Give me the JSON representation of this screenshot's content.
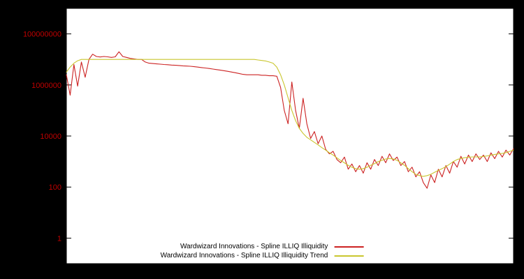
{
  "figure": {
    "background_color": "#000000",
    "plot_background_color": "#ffffff",
    "tick_label_color": "#c00000"
  },
  "chart_data": {
    "type": "line",
    "title": "",
    "xlabel": "",
    "ylabel": "",
    "y_scale": "log",
    "ylim": [
      0.1,
      1000000000
    ],
    "xlim": [
      0,
      119
    ],
    "grid": false,
    "legend_position": "bottom-center",
    "yticks": [
      {
        "value": 1,
        "label": "1"
      },
      {
        "value": 100,
        "label": "100"
      },
      {
        "value": 10000,
        "label": "10000"
      },
      {
        "value": 1000000,
        "label": "1000000"
      },
      {
        "value": 100000000,
        "label": "100000000"
      }
    ],
    "series": [
      {
        "name": "Wardwizard Innovations - Spline ILLIQ Illiquidity",
        "color": "#cc2222",
        "values": [
          2500000,
          400000,
          6300000,
          900000,
          7900000,
          2000000,
          10000000,
          16000000,
          13000000,
          12500000,
          13000000,
          12600000,
          12000000,
          12600000,
          20000000,
          13000000,
          12000000,
          11000000,
          10500000,
          10000000,
          10000000,
          7900000,
          7100000,
          6900000,
          6700000,
          6500000,
          6300000,
          6200000,
          6000000,
          5900000,
          5800000,
          5600000,
          5500000,
          5400000,
          5200000,
          5000000,
          4800000,
          4600000,
          4400000,
          4200000,
          4000000,
          3800000,
          3600000,
          3400000,
          3200000,
          3000000,
          2800000,
          2600000,
          2500000,
          2500000,
          2500000,
          2500000,
          2400000,
          2400000,
          2300000,
          2300000,
          2200000,
          800000,
          100000,
          30000,
          1300000,
          100000,
          20000,
          300000,
          30000,
          8000,
          15000,
          5000,
          10000,
          3000,
          2000,
          2500,
          1200,
          900,
          1500,
          500,
          800,
          400,
          700,
          350,
          900,
          500,
          1200,
          700,
          1600,
          900,
          2000,
          1100,
          1500,
          700,
          1000,
          400,
          600,
          250,
          400,
          150,
          90,
          300,
          150,
          500,
          250,
          700,
          350,
          1000,
          600,
          1600,
          800,
          1800,
          1000,
          2000,
          1200,
          1800,
          1000,
          2200,
          1300,
          2500,
          1500,
          2800,
          1800,
          3200
        ]
      },
      {
        "name": "Wardwizard Innovations - Spline ILLIQ Illiquidity Trend",
        "color": "#c9c62e",
        "values": [
          3200000,
          5000000,
          7100000,
          8900000,
          10000000,
          10000000,
          10000000,
          10000000,
          10000000,
          10000000,
          10000000,
          10000000,
          10000000,
          10000000,
          10000000,
          10000000,
          10000000,
          10000000,
          10000000,
          10000000,
          10000000,
          10000000,
          10000000,
          10000000,
          10000000,
          10000000,
          10000000,
          10000000,
          10000000,
          10000000,
          10000000,
          10000000,
          10000000,
          10000000,
          10000000,
          10000000,
          10000000,
          10000000,
          10000000,
          10000000,
          10000000,
          10000000,
          10000000,
          10000000,
          10000000,
          10000000,
          10000000,
          10000000,
          10000000,
          10000000,
          10000000,
          9500000,
          9100000,
          8700000,
          7900000,
          7100000,
          5000000,
          2500000,
          1000000,
          316000,
          100000,
          40000,
          20000,
          12600,
          8900,
          7100,
          5600,
          4500,
          3500,
          2800,
          2200,
          1800,
          1400,
          1100,
          890,
          710,
          600,
          525,
          500,
          525,
          600,
          710,
          830,
          1000,
          1120,
          1260,
          1320,
          1260,
          1120,
          890,
          710,
          525,
          400,
          316,
          280,
          263,
          280,
          316,
          380,
          450,
          525,
          630,
          790,
          1000,
          1200,
          1320,
          1410,
          1480,
          1510,
          1510,
          1510,
          1580,
          1660,
          1780,
          1900,
          2000,
          2090,
          2240,
          2510,
          2820
        ]
      }
    ]
  },
  "legend": {
    "rows": [
      {
        "label": "Wardwizard Innovations - Spline ILLIQ Illiquidity"
      },
      {
        "label": "Wardwizard Innovations - Spline ILLIQ Illiquidity Trend"
      }
    ]
  }
}
